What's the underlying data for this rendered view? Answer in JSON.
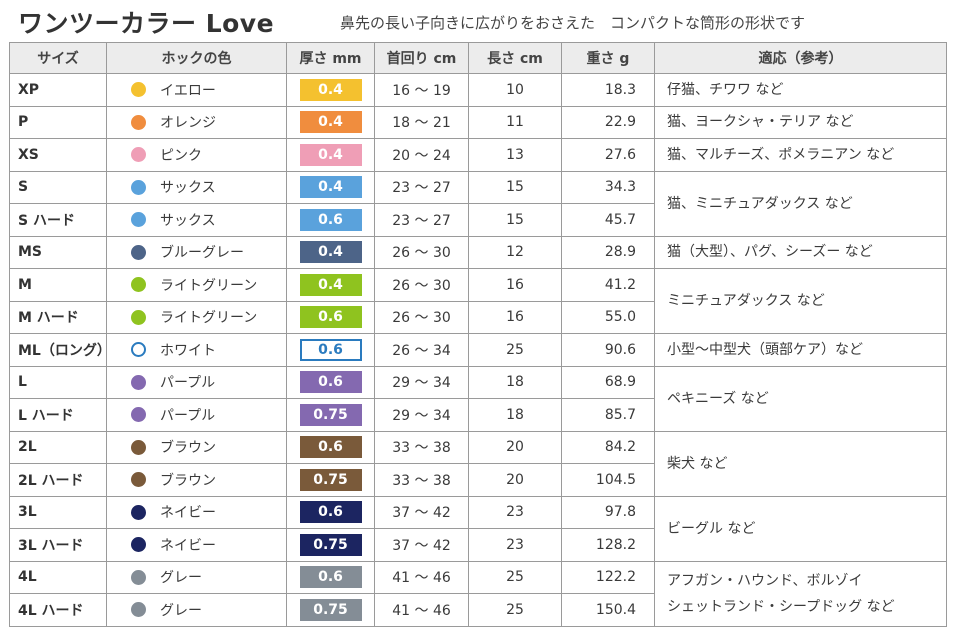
{
  "header": {
    "title": "ワンツーカラー Love",
    "subtitle": "鼻先の長い子向きに広がりをおさえた　コンパクトな筒形の形状です"
  },
  "table": {
    "headers": [
      "サイズ",
      "ホックの色",
      "厚さ mm",
      "首回り cm",
      "長さ cm",
      "重さ g",
      "適応（参考）"
    ],
    "rows": [
      {
        "size": "XP",
        "hook": "イエロー",
        "dot_color": "#f4c12f",
        "thickness": "0.4",
        "badge_color": "#f4c12f",
        "neck": "16 ～ 19",
        "length": "10",
        "weight": "18.3"
      },
      {
        "size": "P",
        "hook": "オレンジ",
        "dot_color": "#f08d3e",
        "thickness": "0.4",
        "badge_color": "#f08d3e",
        "neck": "18 ～ 21",
        "length": "11",
        "weight": "22.9"
      },
      {
        "size": "XS",
        "hook": "ピンク",
        "dot_color": "#ef9eb6",
        "thickness": "0.4",
        "badge_color": "#ef9eb6",
        "neck": "20 ～ 24",
        "length": "13",
        "weight": "27.6"
      },
      {
        "size": "S",
        "hook": "サックス",
        "dot_color": "#5aa2dc",
        "thickness": "0.4",
        "badge_color": "#5aa2dc",
        "neck": "23 ～ 27",
        "length": "15",
        "weight": "34.3"
      },
      {
        "size": "S ハード",
        "hook": "サックス",
        "dot_color": "#5aa2dc",
        "thickness": "0.6",
        "badge_color": "#5aa2dc",
        "neck": "23 ～ 27",
        "length": "15",
        "weight": "45.7"
      },
      {
        "size": "MS",
        "hook": "ブルーグレー",
        "dot_color": "#4d6488",
        "thickness": "0.4",
        "badge_color": "#4d6488",
        "neck": "26 ～ 30",
        "length": "12",
        "weight": "28.9"
      },
      {
        "size": "M",
        "hook": "ライトグリーン",
        "dot_color": "#8fc31f",
        "thickness": "0.4",
        "badge_color": "#8fc31f",
        "neck": "26 ～ 30",
        "length": "16",
        "weight": "41.2"
      },
      {
        "size": "M ハード",
        "hook": "ライトグリーン",
        "dot_color": "#8fc31f",
        "thickness": "0.6",
        "badge_color": "#8fc31f",
        "neck": "26 ～ 30",
        "length": "16",
        "weight": "55.0"
      },
      {
        "size": "ML（ロング）",
        "hook": "ホワイト",
        "dot_color": "#ffffff",
        "thickness": "0.6",
        "badge_color": "#ffffff",
        "neck": "26 ～ 34",
        "length": "25",
        "weight": "90.6"
      },
      {
        "size": "L",
        "hook": "パープル",
        "dot_color": "#8469b0",
        "thickness": "0.6",
        "badge_color": "#8469b0",
        "neck": "29 ～ 34",
        "length": "18",
        "weight": "68.9"
      },
      {
        "size": "L ハード",
        "hook": "パープル",
        "dot_color": "#8469b0",
        "thickness": "0.75",
        "badge_color": "#8469b0",
        "neck": "29 ～ 34",
        "length": "18",
        "weight": "85.7"
      },
      {
        "size": "2L",
        "hook": "ブラウン",
        "dot_color": "#7a5a3a",
        "thickness": "0.6",
        "badge_color": "#7a5a3a",
        "neck": "33 ～ 38",
        "length": "20",
        "weight": "84.2"
      },
      {
        "size": "2L ハード",
        "hook": "ブラウン",
        "dot_color": "#7a5a3a",
        "thickness": "0.75",
        "badge_color": "#7a5a3a",
        "neck": "33 ～ 38",
        "length": "20",
        "weight": "104.5"
      },
      {
        "size": "3L",
        "hook": "ネイビー",
        "dot_color": "#1c2561",
        "thickness": "0.6",
        "badge_color": "#1c2561",
        "neck": "37 ～ 42",
        "length": "23",
        "weight": "97.8"
      },
      {
        "size": "3L ハード",
        "hook": "ネイビー",
        "dot_color": "#1c2561",
        "thickness": "0.75",
        "badge_color": "#1c2561",
        "neck": "37 ～ 42",
        "length": "23",
        "weight": "128.2"
      },
      {
        "size": "4L",
        "hook": "グレー",
        "dot_color": "#848d96",
        "thickness": "0.6",
        "badge_color": "#848d96",
        "neck": "41 ～ 46",
        "length": "25",
        "weight": "122.2"
      },
      {
        "size": "4L ハード",
        "hook": "グレー",
        "dot_color": "#848d96",
        "thickness": "0.75",
        "badge_color": "#848d96",
        "neck": "41 ～ 46",
        "length": "25",
        "weight": "150.4"
      }
    ],
    "aptitude": [
      {
        "text": "仔猫、チワワ など",
        "rows": 1
      },
      {
        "text": "猫、ヨークシャ・テリア など",
        "rows": 1
      },
      {
        "text": "猫、マルチーズ、ポメラニアン など",
        "rows": 1
      },
      {
        "text": "猫、ミニチュアダックス など",
        "rows": 2
      },
      {
        "text": "猫（大型）、パグ、シーズー など",
        "rows": 1
      },
      {
        "text": "ミニチュアダックス など",
        "rows": 2
      },
      {
        "text": "小型～中型犬（頭部ケア）など",
        "rows": 1
      },
      {
        "text": "ペキニーズ など",
        "rows": 2
      },
      {
        "text": "柴犬 など",
        "rows": 2
      },
      {
        "text": "ビーグル など",
        "rows": 2
      },
      {
        "text": "アフガン・ハウンド、ボルゾイ\nシェットランド・シープドッグ など",
        "rows": 2
      }
    ],
    "white_badge_text_color": "#2a7bbf",
    "white_outline_color": "#2a7bbf"
  }
}
